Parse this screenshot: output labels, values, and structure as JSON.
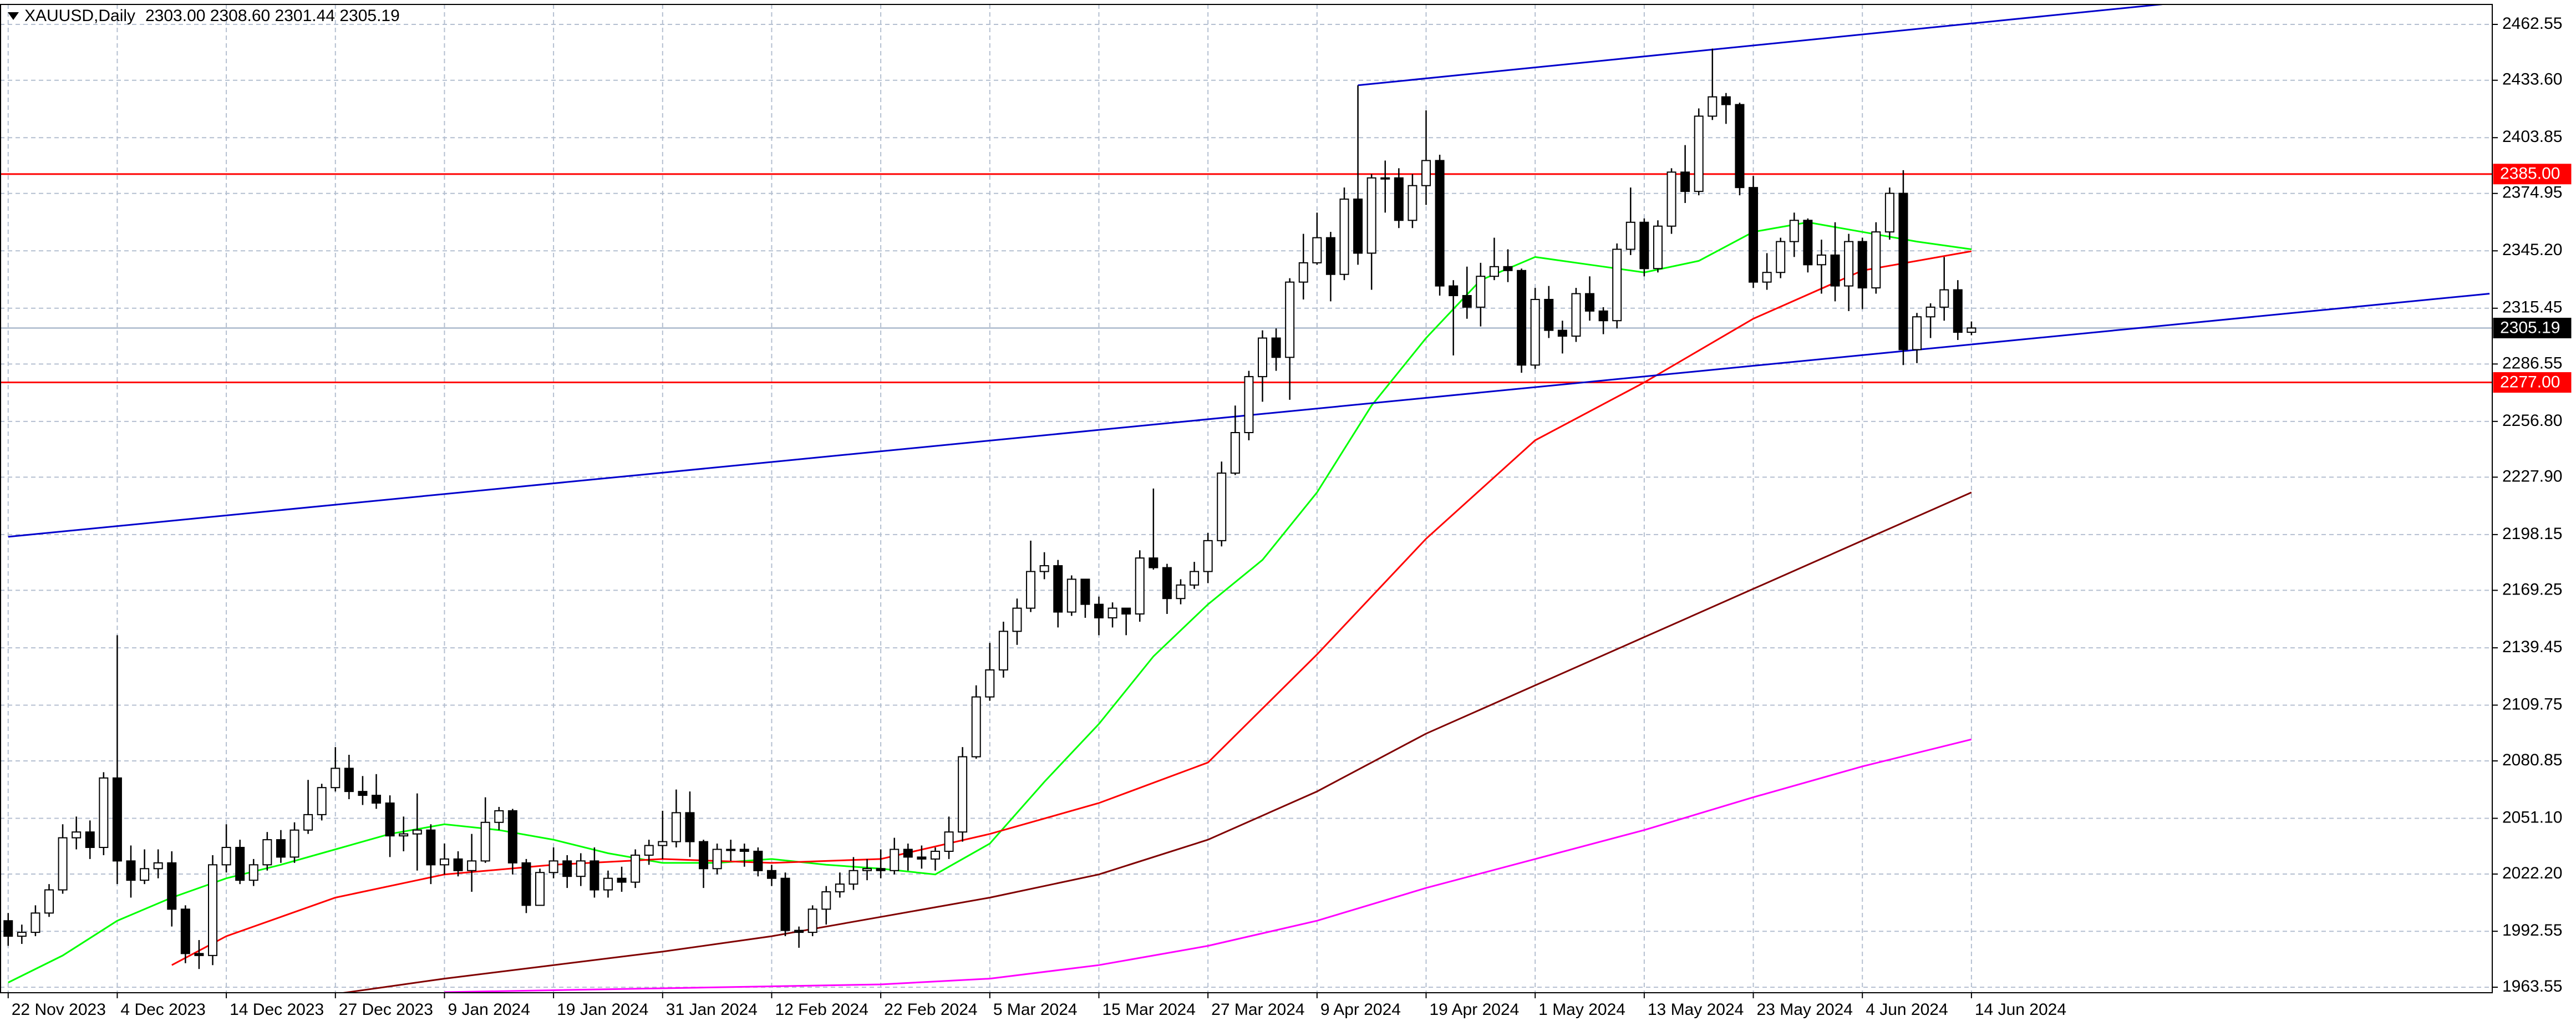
{
  "chart_data": {
    "type": "candlestick",
    "title": "XAUUSD,Daily",
    "subtitle": "2303.00 2308.60 2301.44 2305.19",
    "categories": [
      "22 Nov 2023",
      null,
      null,
      null,
      null,
      null,
      null,
      null,
      "4 Dec 2023",
      null,
      null,
      null,
      null,
      null,
      null,
      null,
      "14 Dec 2023",
      null,
      null,
      null,
      null,
      null,
      null,
      null,
      "27 Dec 2023",
      null,
      null,
      null,
      null,
      null,
      null,
      null,
      "9 Jan 2024",
      null,
      null,
      null,
      null,
      null,
      null,
      null,
      "19 Jan 2024",
      null,
      null,
      null,
      null,
      null,
      null,
      null,
      "31 Jan 2024",
      null,
      null,
      null,
      null,
      null,
      null,
      null,
      "12 Feb 2024",
      null,
      null,
      null,
      null,
      null,
      null,
      null,
      "22 Feb 2024",
      null,
      null,
      null,
      null,
      null,
      null,
      null,
      "5 Mar 2024",
      null,
      null,
      null,
      null,
      null,
      null,
      null,
      "15 Mar 2024",
      null,
      null,
      null,
      null,
      null,
      null,
      null,
      "27 Mar 2024",
      null,
      null,
      null,
      null,
      null,
      null,
      null,
      "9 Apr 2024",
      null,
      null,
      null,
      null,
      null,
      null,
      null,
      "19 Apr 2024",
      null,
      null,
      null,
      null,
      null,
      null,
      null,
      "1 May 2024",
      null,
      null,
      null,
      null,
      null,
      null,
      null,
      "13 May 2024",
      null,
      null,
      null,
      null,
      null,
      null,
      null,
      "23 May 2024",
      null,
      null,
      null,
      null,
      null,
      null,
      null,
      "4 Jun 2024",
      null,
      null,
      null,
      null,
      null,
      null,
      null,
      "14 Jun 2024"
    ],
    "open": [
      1998,
      1990,
      1992,
      2002,
      2014,
      2041,
      2044,
      2036,
      2072,
      2029,
      2019,
      2025,
      2028,
      2004,
      1981,
      1980,
      2027,
      2036,
      2019,
      2027,
      2040,
      2031,
      2045,
      2053,
      2067,
      2077,
      2065,
      2063,
      2059,
      2042,
      2043,
      2045,
      2027,
      2030,
      2024,
      2029,
      2049,
      2055,
      2028,
      2006,
      2023,
      2029,
      2021,
      2029,
      2014,
      2020,
      2018,
      2032,
      2037,
      2039,
      2054,
      2039,
      2025,
      2035,
      2035,
      2034,
      2024,
      2020,
      1993,
      1992,
      2004,
      2013,
      2017,
      2024,
      2025,
      2024,
      2035,
      2031,
      2030,
      2034,
      2044,
      2083,
      2114,
      2128,
      2148,
      2160,
      2179,
      2182,
      2158,
      2175,
      2162,
      2155,
      2160,
      2157,
      2186,
      2181,
      2165,
      2172,
      2179,
      2195,
      2230,
      2251,
      2280,
      2300,
      2290,
      2329,
      2339,
      2352,
      2333,
      2372,
      2344,
      2383,
      2383,
      2361,
      2379,
      2392,
      2327,
      2322,
      2316,
      2332,
      2337,
      2335,
      2286,
      2320,
      2304,
      2301,
      2323,
      2314,
      2309,
      2346,
      2360,
      2336,
      2358,
      2386,
      2376,
      2415,
      2425,
      2421,
      2378,
      2329,
      2334,
      2350,
      2361,
      2338,
      2343,
      2327,
      2350,
      2326,
      2355,
      2375,
      2294,
      2311,
      2316,
      2325,
      2303
    ],
    "high": [
      2002,
      1996,
      2006,
      2017,
      2048,
      2052,
      2050,
      2075,
      2146,
      2037,
      2035,
      2035,
      2034,
      2006,
      1988,
      2032,
      2048,
      2040,
      2030,
      2044,
      2045,
      2049,
      2071,
      2069,
      2088,
      2084,
      2073,
      2074,
      2063,
      2052,
      2064,
      2048,
      2038,
      2034,
      2043,
      2062,
      2057,
      2056,
      2030,
      2025,
      2036,
      2032,
      2033,
      2036,
      2024,
      2026,
      2035,
      2040,
      2055,
      2066,
      2065,
      2040,
      2038,
      2040,
      2038,
      2036,
      2027,
      2023,
      1995,
      2006,
      2016,
      2023,
      2031,
      2030,
      2035,
      2041,
      2038,
      2037,
      2036,
      2052,
      2088,
      2120,
      2142,
      2153,
      2165,
      2195,
      2189,
      2185,
      2177,
      2175,
      2166,
      2163,
      2160,
      2190,
      2222,
      2183,
      2175,
      2184,
      2199,
      2236,
      2265,
      2283,
      2304,
      2305,
      2331,
      2354,
      2365,
      2355,
      2378,
      2431,
      2385,
      2392,
      2388,
      2385,
      2418,
      2395,
      2330,
      2337,
      2339,
      2352,
      2346,
      2336,
      2326,
      2327,
      2309,
      2326,
      2332,
      2316,
      2349,
      2378,
      2362,
      2361,
      2388,
      2400,
      2419,
      2450,
      2427,
      2422,
      2384,
      2344,
      2352,
      2365,
      2362,
      2351,
      2360,
      2354,
      2352,
      2360,
      2378,
      2387,
      2313,
      2318,
      2342,
      2330,
      2308.6
    ],
    "low": [
      1985,
      1986,
      1990,
      2000,
      2012,
      2035,
      2030,
      2032,
      2017,
      2010,
      2017,
      2020,
      1995,
      1976,
      1973,
      1975,
      2023,
      2017,
      2016,
      2024,
      2028,
      2028,
      2043,
      2050,
      2065,
      2061,
      2058,
      2056,
      2031,
      2034,
      2024,
      2017,
      2022,
      2021,
      2013,
      2028,
      2045,
      2022,
      2002,
      2006,
      2020,
      2015,
      2016,
      2010,
      2010,
      2013,
      2015,
      2027,
      2030,
      2036,
      2031,
      2015,
      2022,
      2029,
      2026,
      2021,
      2016,
      1990,
      1984,
      1990,
      1996,
      2010,
      2014,
      2019,
      2020,
      2022,
      2024,
      2025,
      2024,
      2030,
      2039,
      2082,
      2112,
      2124,
      2141,
      2158,
      2175,
      2150,
      2156,
      2155,
      2146,
      2150,
      2146,
      2153,
      2180,
      2157,
      2162,
      2170,
      2173,
      2192,
      2229,
      2247,
      2267,
      2283,
      2268,
      2320,
      2338,
      2319,
      2330,
      2338,
      2325,
      2365,
      2357,
      2357,
      2369,
      2322,
      2291,
      2310,
      2306,
      2330,
      2329,
      2282,
      2284,
      2300,
      2292,
      2298,
      2309,
      2302,
      2305,
      2343,
      2332,
      2334,
      2354,
      2370,
      2374,
      2413,
      2411,
      2374,
      2326,
      2325,
      2331,
      2342,
      2334,
      2323,
      2319,
      2314,
      2315,
      2323,
      2351,
      2286,
      2287,
      2300,
      2309,
      2299,
      2301.44
    ],
    "close": [
      1990,
      1992,
      2002,
      2014,
      2041,
      2044,
      2036,
      2072,
      2029,
      2019,
      2025,
      2028,
      2004,
      1981,
      1980,
      2027,
      2036,
      2019,
      2027,
      2040,
      2031,
      2045,
      2053,
      2067,
      2077,
      2065,
      2063,
      2059,
      2042,
      2043,
      2045,
      2027,
      2030,
      2024,
      2029,
      2049,
      2055,
      2028,
      2006,
      2023,
      2029,
      2021,
      2029,
      2014,
      2020,
      2018,
      2032,
      2037,
      2039,
      2054,
      2039,
      2025,
      2035,
      2035,
      2034,
      2024,
      2020,
      1993,
      1992,
      2004,
      2013,
      2017,
      2024,
      2025,
      2024,
      2035,
      2031,
      2030,
      2034,
      2044,
      2083,
      2114,
      2128,
      2148,
      2160,
      2179,
      2182,
      2158,
      2175,
      2162,
      2155,
      2160,
      2157,
      2186,
      2181,
      2165,
      2172,
      2179,
      2195,
      2230,
      2251,
      2280,
      2300,
      2290,
      2329,
      2339,
      2352,
      2333,
      2372,
      2344,
      2383,
      2383,
      2361,
      2379,
      2392,
      2327,
      2322,
      2316,
      2332,
      2337,
      2335,
      2286,
      2320,
      2304,
      2301,
      2323,
      2314,
      2309,
      2346,
      2360,
      2336,
      2358,
      2386,
      2376,
      2415,
      2425,
      2421,
      2378,
      2329,
      2334,
      2350,
      2361,
      2338,
      2343,
      2327,
      2350,
      2326,
      2355,
      2375,
      2294,
      2311,
      2316,
      2325,
      2303,
      2305.19
    ],
    "up_color": "#ffffff",
    "down_color": "#000000",
    "series": [
      {
        "color": "#00ff00",
        "x": [
          0,
          4,
          8,
          12,
          16,
          20,
          24,
          28,
          32,
          36,
          40,
          44,
          48,
          52,
          56,
          60,
          64,
          68,
          72,
          76,
          80,
          84,
          88,
          92,
          96,
          100,
          104,
          108,
          112,
          116,
          120,
          124,
          128,
          132,
          136,
          140,
          144
        ],
        "values": [
          1966,
          1980,
          1998,
          2010,
          2020,
          2027,
          2035,
          2043,
          2048,
          2045,
          2040,
          2033,
          2028,
          2028,
          2030,
          2027,
          2025,
          2022,
          2038,
          2070,
          2100,
          2135,
          2162,
          2185,
          2220,
          2265,
          2300,
          2330,
          2342,
          2338,
          2334,
          2340,
          2355,
          2360,
          2355,
          2350,
          2346
        ]
      },
      {
        "color": "#ff0000",
        "x": [
          12,
          16,
          24,
          32,
          40,
          48,
          56,
          64,
          72,
          80,
          88,
          96,
          104,
          112,
          120,
          128,
          136,
          144
        ],
        "values": [
          1975,
          1990,
          2010,
          2022,
          2027,
          2030,
          2028,
          2030,
          2043,
          2059,
          2080,
          2136,
          2196,
          2247,
          2277,
          2310,
          2335,
          2345
        ]
      },
      {
        "color": "#800000",
        "x": [
          24,
          32,
          40,
          48,
          56,
          64,
          72,
          80,
          88,
          96,
          104,
          112,
          120,
          128,
          136,
          144
        ],
        "values": [
          1960,
          1968,
          1975,
          1982,
          1990,
          2000,
          2010,
          2022,
          2040,
          2065,
          2095,
          2120,
          2145,
          2170,
          2195,
          2220
        ]
      },
      {
        "color": "#ff00ff",
        "x": [
          32,
          40,
          48,
          56,
          64,
          72,
          80,
          88,
          96,
          104,
          112,
          120,
          128,
          136,
          144
        ],
        "values": [
          1961,
          1962,
          1963,
          1964,
          1965,
          1968,
          1975,
          1985,
          1998,
          2015,
          2030,
          2045,
          2062,
          2078,
          2092
        ]
      }
    ],
    "trendlines": [
      {
        "color": "#0000cc",
        "x": [
          0,
          182
        ],
        "y": [
          2197,
          2323
        ]
      },
      {
        "color": "#0000cc",
        "x": [
          99,
          158
        ],
        "y": [
          2431,
          2473
        ]
      }
    ],
    "hlines": [
      {
        "value": 2385,
        "label": "2385.00",
        "color": "#ff0000"
      },
      {
        "value": 2277,
        "label": "2277.00",
        "color": "#ff0000"
      }
    ],
    "last_price": {
      "value": 2305.19,
      "label": "2305.19",
      "color": "#b8c4d4"
    },
    "xlim": [
      -0.6,
      182.2
    ],
    "ylim": [
      1960.7,
      2472.9
    ],
    "yticks": [
      2462.55,
      {
        "value": 2433.6,
        "label": "2433.60"
      },
      2403.85,
      2374.95,
      {
        "value": 2345.2,
        "label": "2345.20"
      },
      2315.45,
      2286.55,
      {
        "value": 2256.8,
        "label": "2256.80"
      },
      {
        "value": 2227.9,
        "label": "2227.90"
      },
      2198.15,
      2169.25,
      2139.45,
      2109.75,
      2080.85,
      {
        "value": 2051.1,
        "label": "2051.10"
      },
      {
        "value": 2022.2,
        "label": "2022.20"
      },
      1992.55,
      1963.55
    ],
    "grid": true
  }
}
